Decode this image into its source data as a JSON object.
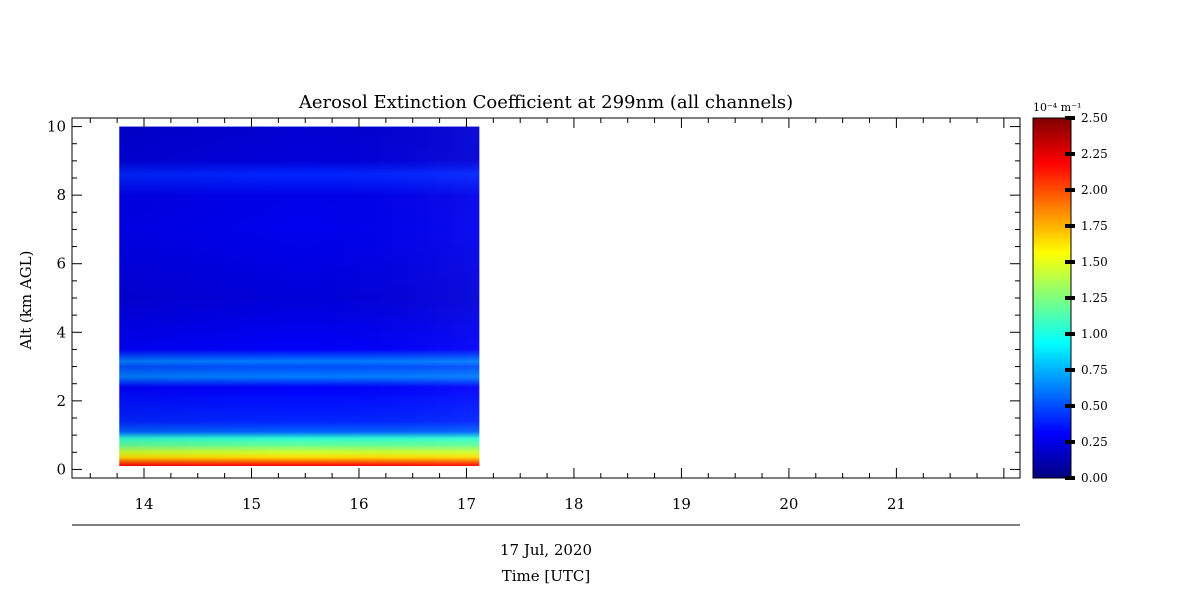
{
  "chart_data": {
    "type": "heatmap",
    "title": "Aerosol Extinction Coefficient at 299nm (all channels)",
    "ylabel": "Alt (km AGL)",
    "xlabel": "Time [UTC]",
    "date_label": "17 Jul, 2020",
    "x_ticks": [
      "14",
      "15",
      "16",
      "17",
      "18",
      "19",
      "20",
      "21"
    ],
    "x_tick_values": [
      14,
      15,
      16,
      17,
      18,
      19,
      20,
      21
    ],
    "xlim": [
      13.33,
      22.15
    ],
    "y_ticks": [
      "0",
      "2",
      "4",
      "6",
      "8",
      "10"
    ],
    "y_tick_values": [
      0,
      2,
      4,
      6,
      8,
      10
    ],
    "ylim": [
      -0.25,
      10.25
    ],
    "data_time_range": [
      13.77,
      17.12
    ],
    "data_alt_range": [
      0.1,
      10.0
    ],
    "colorbar": {
      "unit": "10⁻⁴ m⁻¹",
      "range": [
        0.0,
        2.5
      ],
      "tick_values": [
        0.0,
        0.25,
        0.5,
        0.75,
        1.0,
        1.25,
        1.5,
        1.75,
        2.0,
        2.25,
        2.5
      ],
      "tick_labels": [
        "0.00",
        "0.25",
        "0.50",
        "0.75",
        "1.00",
        "1.25",
        "1.50",
        "1.75",
        "2.00",
        "2.25",
        "2.50"
      ],
      "colormap": "jet"
    },
    "profile": [
      {
        "alt": 0.1,
        "value": 2.2
      },
      {
        "alt": 0.2,
        "value": 2.0
      },
      {
        "alt": 0.35,
        "value": 1.65
      },
      {
        "alt": 0.5,
        "value": 1.45
      },
      {
        "alt": 0.7,
        "value": 1.2
      },
      {
        "alt": 0.9,
        "value": 1.05
      },
      {
        "alt": 1.1,
        "value": 0.55
      },
      {
        "alt": 1.4,
        "value": 0.4
      },
      {
        "alt": 2.0,
        "value": 0.35
      },
      {
        "alt": 2.4,
        "value": 0.3
      },
      {
        "alt": 2.7,
        "value": 0.62
      },
      {
        "alt": 3.0,
        "value": 0.5
      },
      {
        "alt": 3.15,
        "value": 0.62
      },
      {
        "alt": 3.5,
        "value": 0.3
      },
      {
        "alt": 5.0,
        "value": 0.22
      },
      {
        "alt": 7.0,
        "value": 0.27
      },
      {
        "alt": 8.0,
        "value": 0.26
      },
      {
        "alt": 8.6,
        "value": 0.4
      },
      {
        "alt": 9.0,
        "value": 0.22
      },
      {
        "alt": 10.0,
        "value": 0.2
      }
    ]
  }
}
